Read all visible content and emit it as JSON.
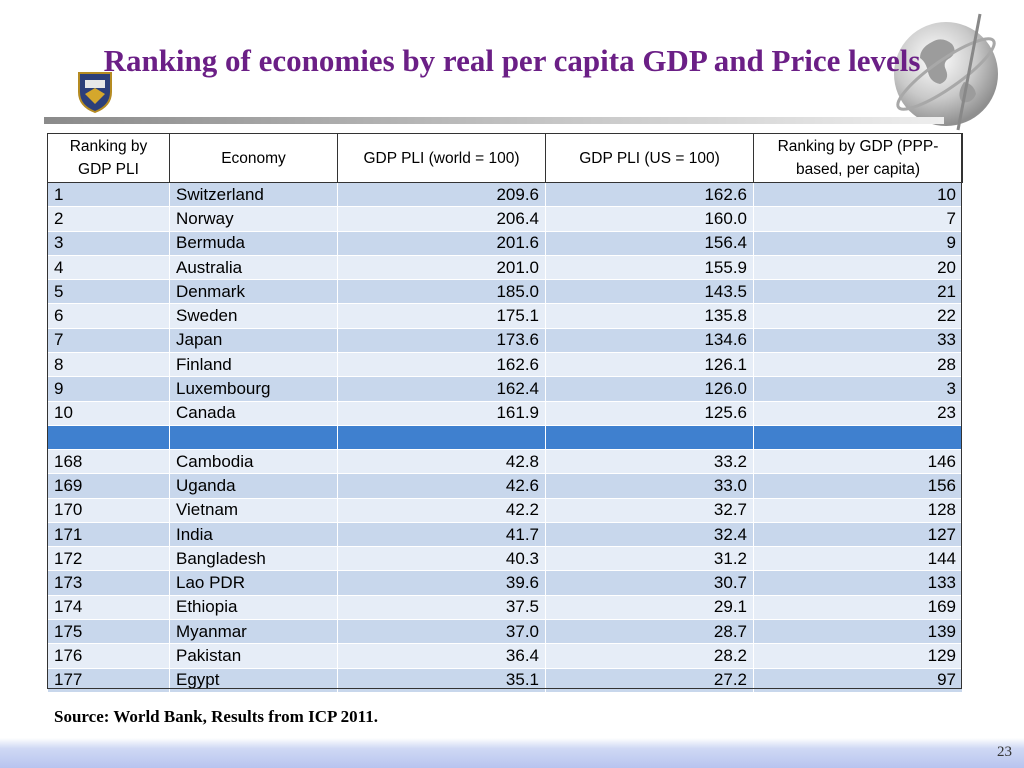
{
  "slide": {
    "title": "Ranking of economies by real per capita GDP and Price levels",
    "source": "Source: World Bank, Results from ICP 2011.",
    "page_number": "23"
  },
  "table": {
    "headers": [
      "Ranking by GDP PLI",
      "Economy",
      "GDP PLI (world = 100)",
      "GDP PLI (US = 100)",
      "Ranking by GDP (PPP-based, per capita)"
    ],
    "top_rows": [
      [
        "1",
        "Switzerland",
        "209.6",
        "162.6",
        "10"
      ],
      [
        "2",
        "Norway",
        "206.4",
        "160.0",
        "7"
      ],
      [
        "3",
        "Bermuda",
        "201.6",
        "156.4",
        "9"
      ],
      [
        "4",
        "Australia",
        "201.0",
        "155.9",
        "20"
      ],
      [
        "5",
        "Denmark",
        "185.0",
        "143.5",
        "21"
      ],
      [
        "6",
        "Sweden",
        "175.1",
        "135.8",
        "22"
      ],
      [
        "7",
        "Japan",
        "173.6",
        "134.6",
        "33"
      ],
      [
        "8",
        "Finland",
        "162.6",
        "126.1",
        "28"
      ],
      [
        "9",
        "Luxembourg",
        "162.4",
        "126.0",
        "3"
      ],
      [
        "10",
        "Canada",
        "161.9",
        "125.6",
        "23"
      ]
    ],
    "bottom_rows": [
      [
        "168",
        "Cambodia",
        "42.8",
        "33.2",
        "146"
      ],
      [
        "169",
        "Uganda",
        "42.6",
        "33.0",
        "156"
      ],
      [
        "170",
        "Vietnam",
        "42.2",
        "32.7",
        "128"
      ],
      [
        "171",
        "India",
        "41.7",
        "32.4",
        "127"
      ],
      [
        "172",
        "Bangladesh",
        "40.3",
        "31.2",
        "144"
      ],
      [
        "173",
        "Lao PDR",
        "39.6",
        "30.7",
        "133"
      ],
      [
        "174",
        "Ethiopia",
        "37.5",
        "29.1",
        "169"
      ],
      [
        "175",
        "Myanmar",
        "37.0",
        "28.7",
        "139"
      ],
      [
        "176",
        "Pakistan",
        "36.4",
        "28.2",
        "129"
      ],
      [
        "177",
        "Egypt",
        "35.1",
        "27.2",
        "97"
      ]
    ]
  },
  "colors": {
    "title": "#6b1f86",
    "row_odd": "#c8d7ec",
    "row_even": "#e6edf7",
    "separator": "#3f80cf"
  }
}
